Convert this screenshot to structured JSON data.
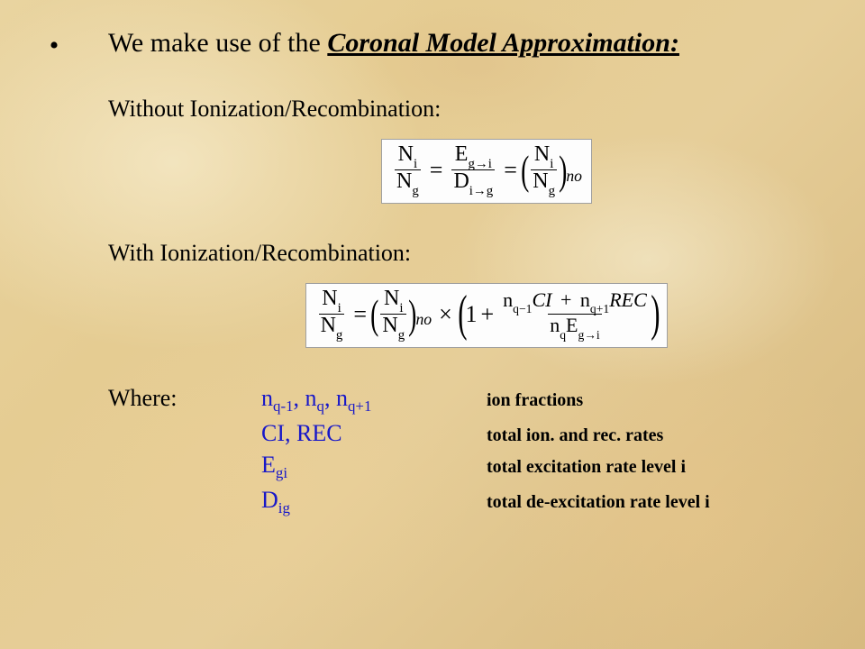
{
  "colors": {
    "body_text": "#000000",
    "symbol_blue": "#1818c8",
    "eq_bg": "#fdfdfd",
    "eq_border": "#a0a0a0",
    "parchment_gradient": [
      "#e9d4a0",
      "#e5cc92",
      "#e6ce99",
      "#ddc188",
      "#d7ba80"
    ]
  },
  "fonts": {
    "family": "Times New Roman",
    "heading_size_pt": 30,
    "body_size_pt": 26,
    "desc_size_pt": 20
  },
  "bullet_glyph": "•",
  "heading_prefix": "We make use of the ",
  "heading_emph": "Coronal Model Approximation:",
  "section1_label": "Without Ionization/Recombination:",
  "section2_label": "With Ionization/Recombination:",
  "eq1": {
    "lhs_num": "N",
    "lhs_num_sub": "i",
    "lhs_den": "N",
    "lhs_den_sub": "g",
    "mid_num": "E",
    "mid_num_sub": "g→i",
    "mid_den": "D",
    "mid_den_sub": "i→g",
    "rhs_num": "N",
    "rhs_num_sub": "i",
    "rhs_den": "N",
    "rhs_den_sub": "g",
    "rhs_outer_sub": "no",
    "eq_sign": "="
  },
  "eq2": {
    "lhs_num": "N",
    "lhs_num_sub": "i",
    "lhs_den": "N",
    "lhs_den_sub": "g",
    "paren_num": "N",
    "paren_num_sub": "i",
    "paren_den": "N",
    "paren_den_sub": "g",
    "paren_outer_sub": "no",
    "mult": "×",
    "one": "1",
    "plus": "+",
    "big_num_a": "n",
    "big_num_a_sub": "q−1",
    "big_num_a_rate": "CI",
    "big_num_b": "n",
    "big_num_b_sub": "q+1",
    "big_num_b_rate": "REC",
    "big_den_a": "n",
    "big_den_a_sub": "q",
    "big_den_b": "E",
    "big_den_b_sub": "g→i",
    "eq_sign": "="
  },
  "where_label": "Where:",
  "defs": [
    {
      "sym_html": "n<sub>q-1</sub>, n<sub>q</sub>, n<sub>q+1</sub>",
      "desc": "ion fractions"
    },
    {
      "sym_html": "CI, REC",
      "desc": "total ion. and rec. rates"
    },
    {
      "sym_html": "E<sub>gi</sub>",
      "desc": "total excitation rate level i"
    },
    {
      "sym_html": "D<sub>ig</sub>",
      "desc": "total de-excitation rate level i"
    }
  ]
}
